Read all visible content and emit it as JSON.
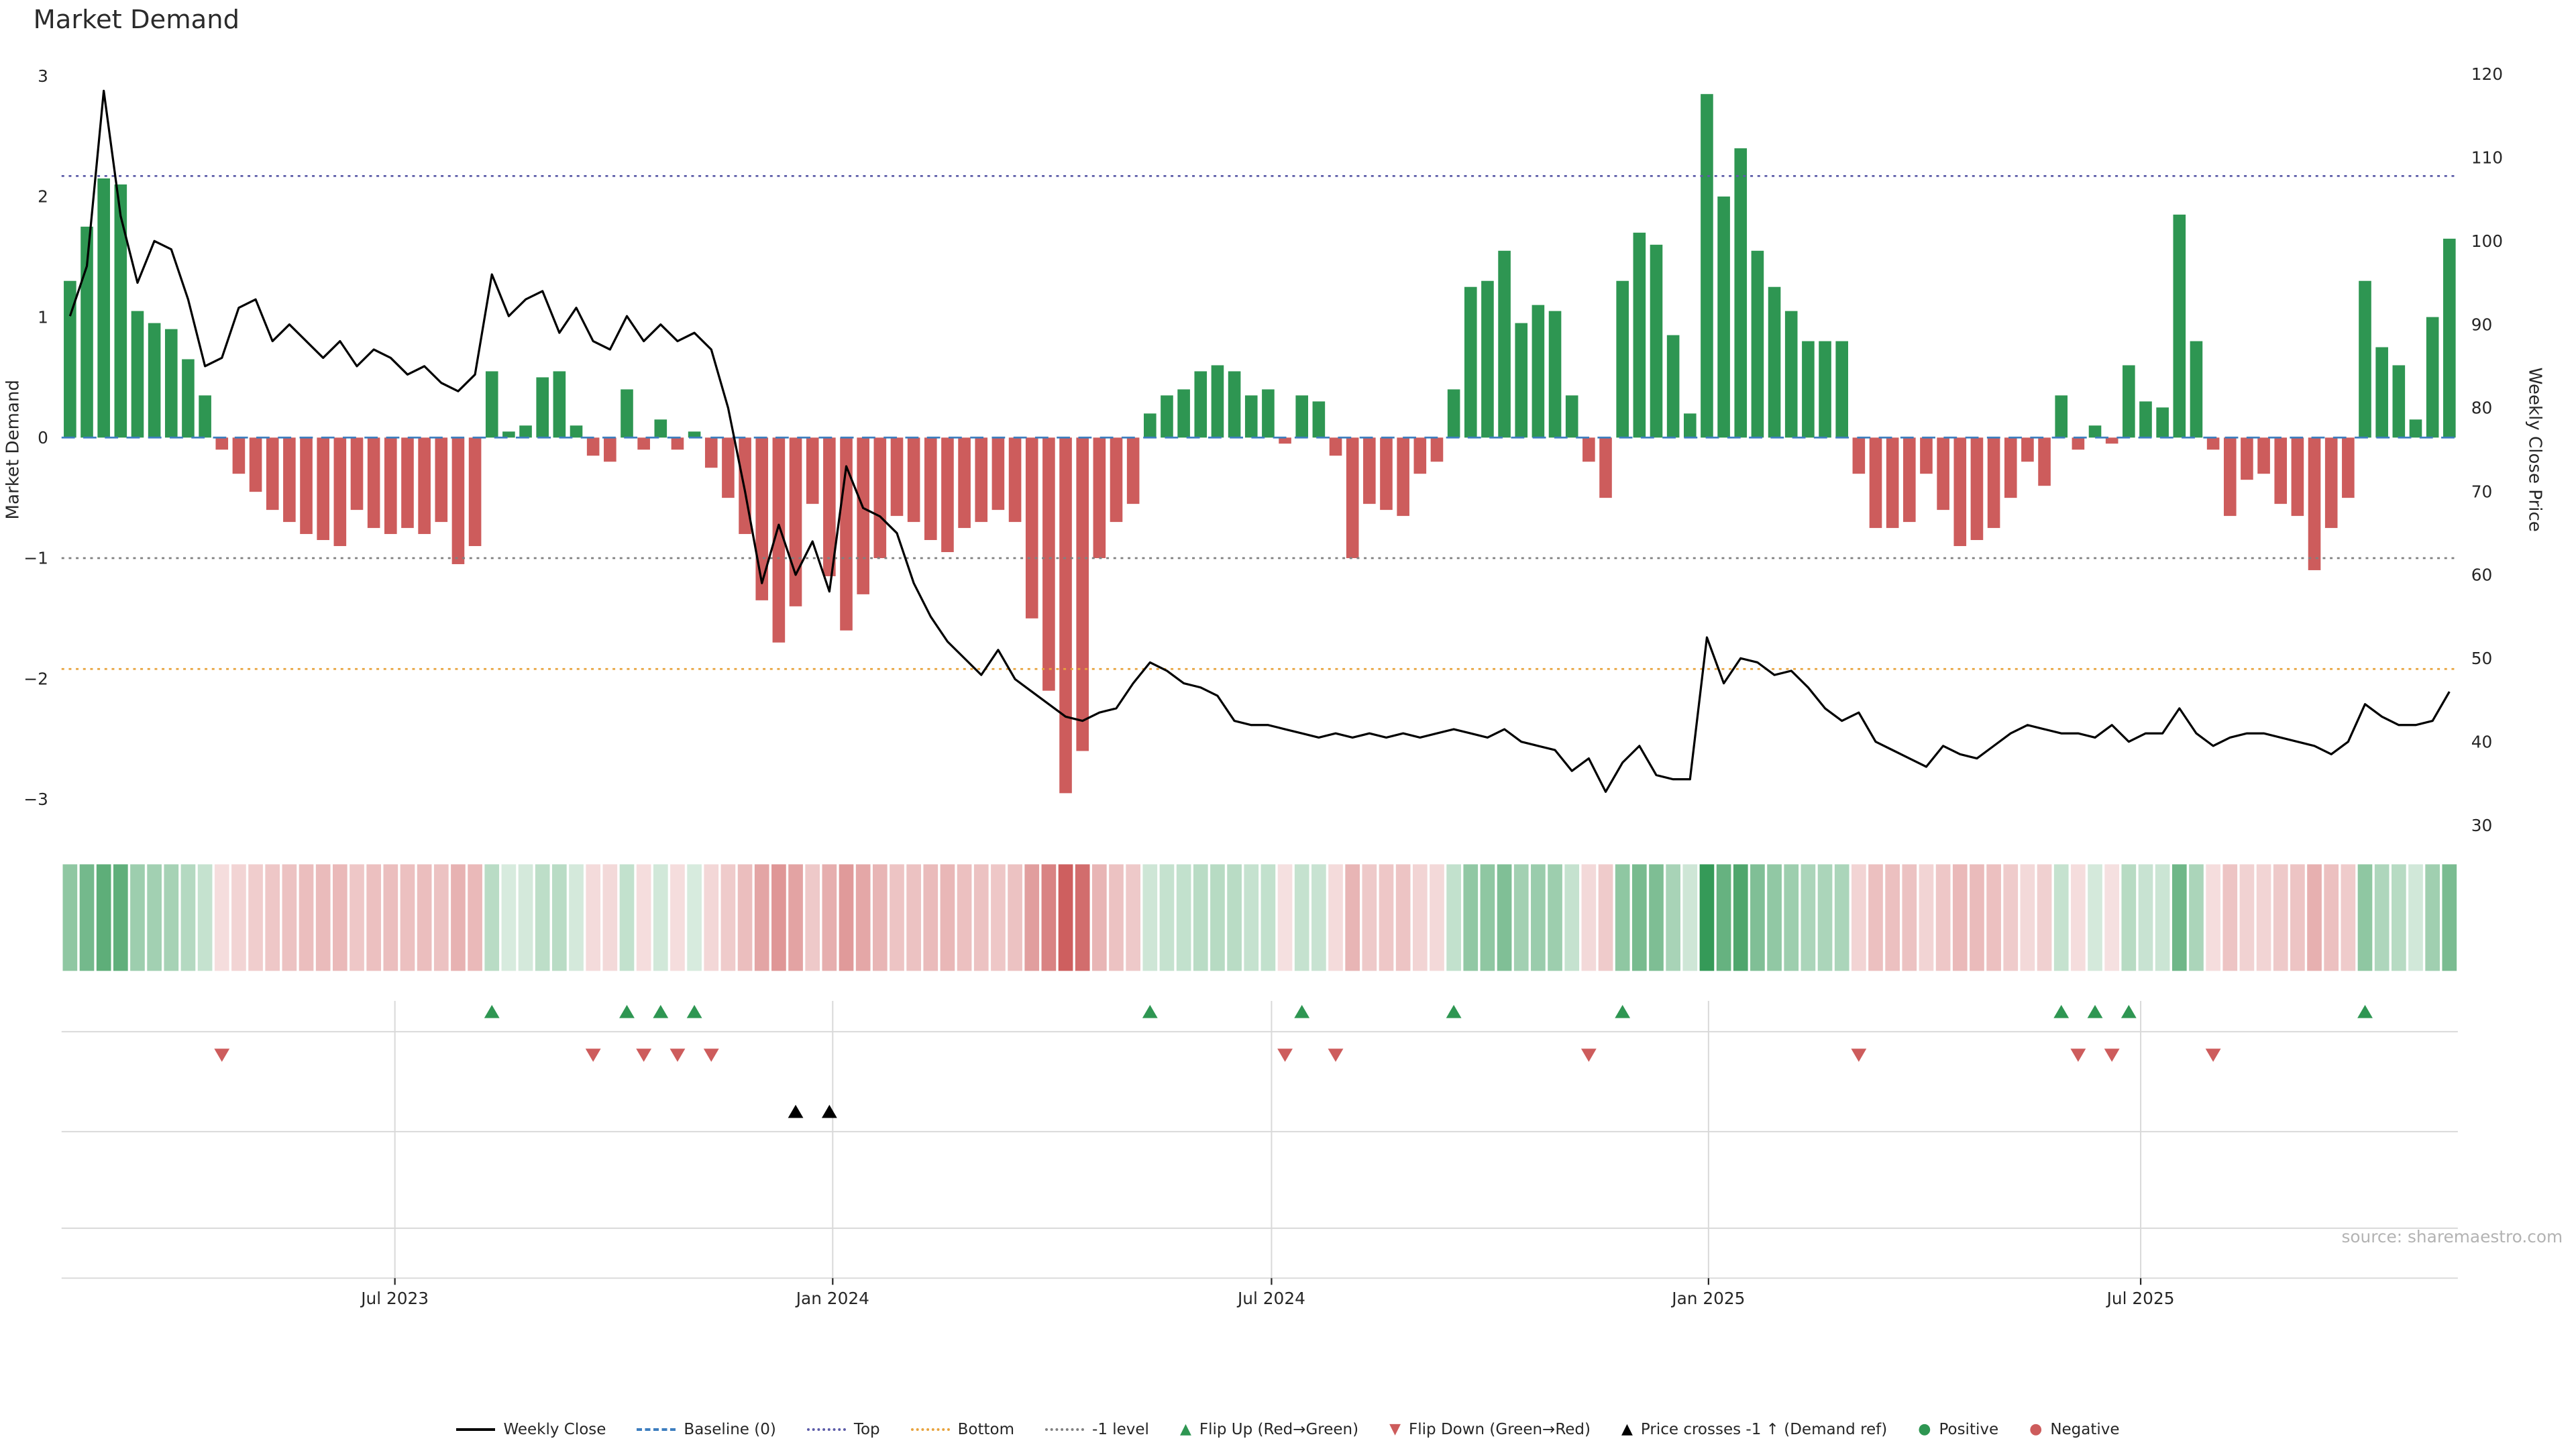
{
  "page": {
    "title": "Market Demand",
    "source": "source: sharemaestro.com"
  },
  "axes": {
    "left_title": "Market Demand",
    "right_title": "Weekly Close Price",
    "left_ticks": [
      3,
      2,
      1,
      0,
      -1,
      -2,
      -3
    ],
    "right_ticks": [
      120,
      110,
      100,
      90,
      80,
      70,
      60,
      50,
      40,
      30
    ],
    "left_range": [
      -3.25,
      3.05
    ],
    "right_range": [
      29.5,
      120.5
    ],
    "x_ticks": [
      {
        "label": "Jul 2023",
        "index": 19.25
      },
      {
        "label": "Jan 2024",
        "index": 45.2
      },
      {
        "label": "Jul 2024",
        "index": 71.2
      },
      {
        "label": "Jan 2025",
        "index": 97.1
      },
      {
        "label": "Jul 2025",
        "index": 122.7
      }
    ]
  },
  "colors": {
    "positive": "#2e9652",
    "negative": "#cd5c5c",
    "line": "#000000",
    "baseline": "#3d7ebf",
    "top": "#5c5ca8",
    "bottom": "#e8a33d",
    "minus1": "#808080",
    "grid": "#d9d9d9",
    "text": "#262626",
    "source_text": "#b3b3b3"
  },
  "legend": {
    "items": [
      {
        "label": "Weekly Close",
        "glyph": "line-solid",
        "color": "#000000"
      },
      {
        "label": "Baseline (0)",
        "glyph": "line-dashed",
        "color": "#3d7ebf"
      },
      {
        "label": "Top",
        "glyph": "line-dotted",
        "color": "#5c5ca8"
      },
      {
        "label": "Bottom",
        "glyph": "line-dotted",
        "color": "#e8a33d"
      },
      {
        "label": "-1 level",
        "glyph": "line-dotted",
        "color": "#808080"
      },
      {
        "label": "Flip Up (Red→Green)",
        "glyph": "triangle-up",
        "color": "#2e9652"
      },
      {
        "label": "Flip Down (Green→Red)",
        "glyph": "triangle-down",
        "color": "#cd5c5c"
      },
      {
        "label": "Price crosses -1 ↑ (Demand ref)",
        "glyph": "triangle-up",
        "color": "#000000"
      },
      {
        "label": "Positive",
        "glyph": "dot",
        "color": "#2e9652"
      },
      {
        "label": "Negative",
        "glyph": "dot",
        "color": "#cd5c5c"
      }
    ]
  },
  "chart_data": {
    "type": "bar",
    "title": "Market Demand",
    "x_start": "2023-02-20",
    "x_interval": "1 week",
    "n_points": 142,
    "xlabel": "",
    "ylabel_left": "Market Demand",
    "ylabel_right": "Weekly Close Price",
    "ylim_left": [
      -3.25,
      3.05
    ],
    "ylim_right": [
      29.5,
      120.5
    ],
    "legend_position": "bottom-center",
    "grid": "marker-panel-only",
    "series": [
      {
        "name": "Market Demand",
        "type": "bar",
        "axis": "left",
        "values": [
          1.3,
          1.75,
          2.15,
          2.1,
          1.05,
          0.95,
          0.9,
          0.65,
          0.35,
          -0.1,
          -0.3,
          -0.45,
          -0.6,
          -0.7,
          -0.8,
          -0.85,
          -0.9,
          -0.6,
          -0.75,
          -0.8,
          -0.75,
          -0.8,
          -0.7,
          -1.05,
          -0.9,
          0.55,
          0.05,
          0.1,
          0.5,
          0.55,
          0.1,
          -0.15,
          -0.2,
          0.4,
          -0.1,
          0.15,
          -0.1,
          0.05,
          -0.25,
          -0.5,
          -0.8,
          -1.35,
          -1.7,
          -1.4,
          -0.55,
          -1.15,
          -1.6,
          -1.3,
          -1.0,
          -0.65,
          -0.7,
          -0.85,
          -0.95,
          -0.75,
          -0.7,
          -0.6,
          -0.7,
          -1.5,
          -2.1,
          -2.95,
          -2.6,
          -1.0,
          -0.7,
          -0.55,
          0.2,
          0.35,
          0.4,
          0.55,
          0.6,
          0.55,
          0.35,
          0.4,
          -0.05,
          0.35,
          0.3,
          -0.15,
          -1.0,
          -0.55,
          -0.6,
          -0.65,
          -0.3,
          -0.2,
          0.4,
          1.25,
          1.3,
          1.55,
          0.95,
          1.1,
          1.05,
          0.35,
          -0.2,
          -0.5,
          1.3,
          1.7,
          1.6,
          0.85,
          0.2,
          2.85,
          2.0,
          2.4,
          1.55,
          1.25,
          1.05,
          0.8,
          0.8,
          0.8,
          -0.3,
          -0.75,
          -0.75,
          -0.7,
          -0.3,
          -0.6,
          -0.9,
          -0.85,
          -0.75,
          -0.5,
          -0.2,
          -0.4,
          0.35,
          -0.1,
          0.1,
          -0.05,
          0.6,
          0.3,
          0.25,
          1.85,
          0.8,
          -0.1,
          -0.65,
          -0.35,
          -0.3,
          -0.55,
          -0.65,
          -1.1,
          -0.75,
          -0.5,
          1.3,
          0.75,
          0.6,
          0.15,
          1.0,
          1.65
        ]
      },
      {
        "name": "Weekly Close",
        "type": "line",
        "axis": "right",
        "values": [
          91,
          97,
          118,
          103,
          95,
          100,
          99,
          93,
          85,
          86,
          92,
          93,
          88,
          90,
          88,
          86,
          88,
          85,
          87,
          86,
          84,
          85,
          83,
          82,
          84,
          96,
          91,
          93,
          94,
          89,
          92,
          88,
          87,
          91,
          88,
          90,
          88,
          89,
          87,
          80,
          70,
          59,
          66,
          60,
          64,
          58,
          73,
          68,
          67,
          65,
          59,
          55,
          52,
          50,
          48,
          51,
          47.5,
          46,
          44.5,
          43,
          42.5,
          43.5,
          44,
          47,
          49.5,
          48.5,
          47,
          46.5,
          45.5,
          42.5,
          42,
          42,
          41.5,
          41,
          40.5,
          41,
          40.5,
          41,
          40.5,
          41,
          40.5,
          41,
          41.5,
          41,
          40.5,
          41.5,
          40,
          39.5,
          39,
          36.5,
          38,
          34,
          37.5,
          39.5,
          36,
          35.5,
          35.5,
          52.5,
          47,
          50,
          49.5,
          48,
          48.5,
          46.5,
          44,
          42.5,
          43.5,
          40,
          39,
          38,
          37,
          39.5,
          38.5,
          38,
          39.5,
          41,
          42,
          41.5,
          41,
          41,
          40.5,
          42,
          40,
          41,
          41,
          44,
          41,
          39.5,
          40.5,
          41,
          41,
          40.5,
          40,
          39.5,
          38.5,
          40,
          44.5,
          43,
          42,
          42,
          42.5,
          46
        ]
      }
    ],
    "ref_lines": [
      {
        "name": "Baseline (0)",
        "value": 0,
        "style": "dashed",
        "color": "#3d7ebf"
      },
      {
        "name": "Top",
        "value": 2.17,
        "style": "dotted",
        "color": "#5c5ca8"
      },
      {
        "name": "Bottom",
        "value": -1.92,
        "style": "dotted",
        "color": "#e8a33d"
      },
      {
        "name": "-1 level",
        "value": -1,
        "style": "dotted",
        "color": "#808080"
      }
    ],
    "markers": {
      "flip_up_weeks": [
        25,
        33,
        35,
        37,
        64,
        73,
        82,
        92,
        118,
        120,
        122,
        136
      ],
      "flip_down_weeks": [
        9,
        31,
        34,
        36,
        38,
        72,
        75,
        90,
        106,
        119,
        121,
        127
      ],
      "price_cross_minus1_weeks": [
        43,
        45
      ]
    },
    "heatmap_strip": {
      "derived_from": "Market Demand",
      "positive_color": "#2e9652",
      "negative_color": "#cd5c5c",
      "intensity": "abs(value)"
    }
  }
}
